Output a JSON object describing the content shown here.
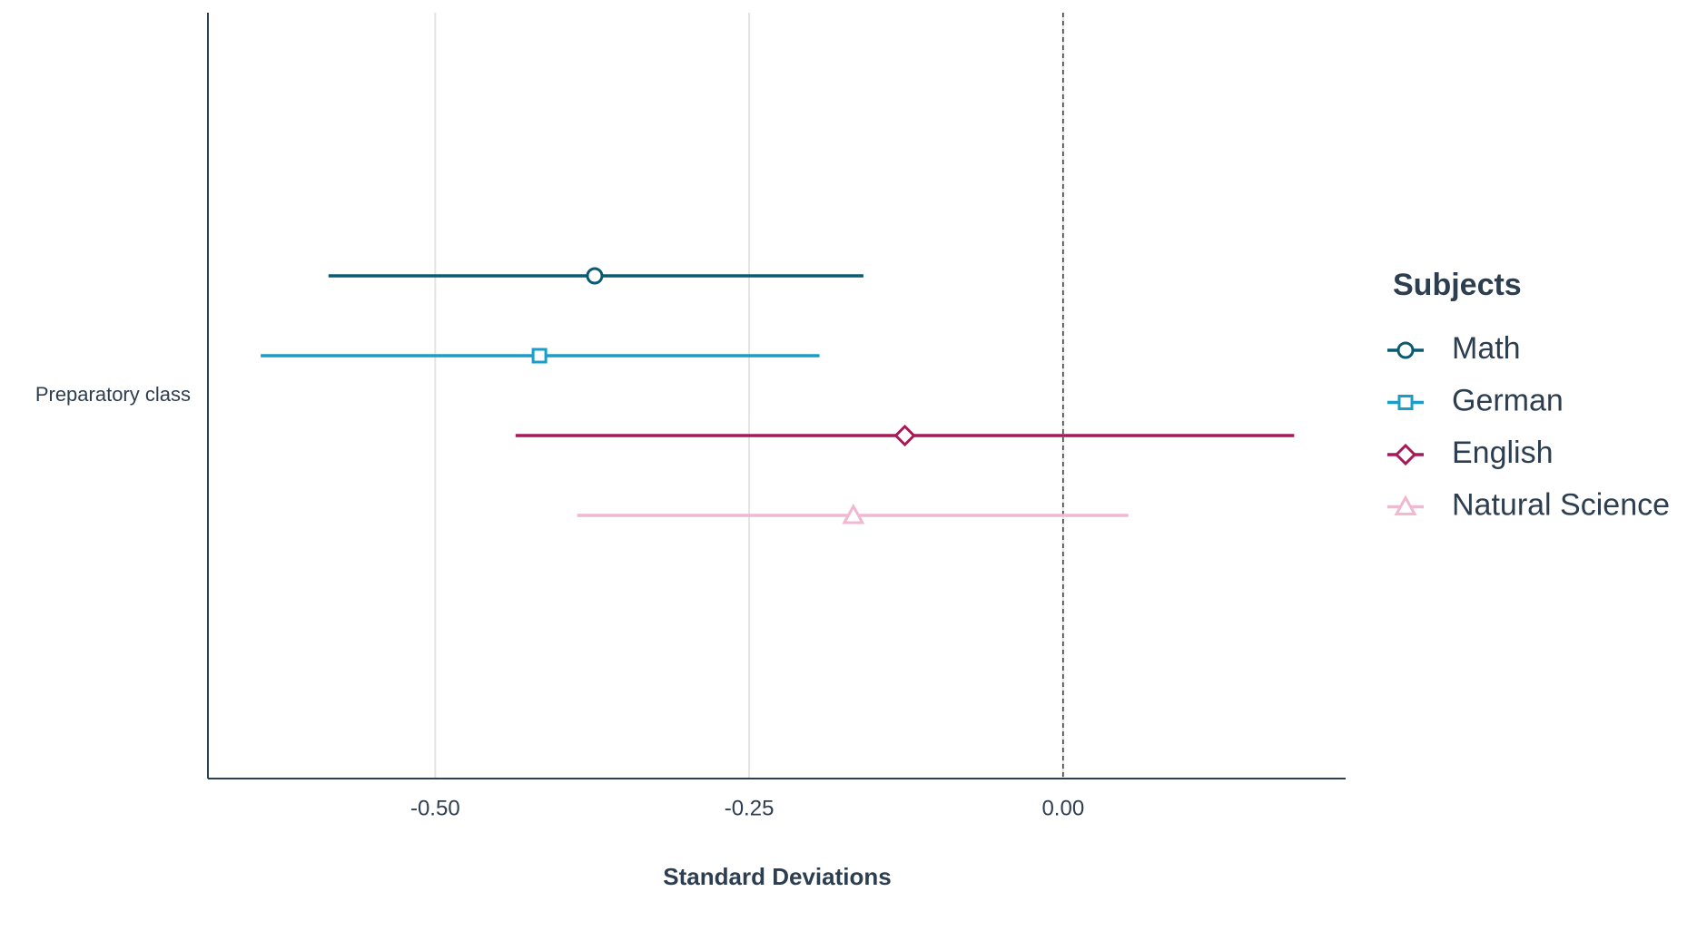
{
  "chart_data": {
    "type": "errorbar",
    "x_label": "Standard Deviations",
    "categories": [
      "Preparatory class"
    ],
    "legend_title": "Subjects",
    "legend": "right",
    "grid": true,
    "reference_line": 0,
    "xlim": [
      -0.681,
      0.225
    ],
    "xticks": [
      {
        "value": -0.5,
        "label": "-0.50"
      },
      {
        "value": -0.25,
        "label": "-0.25"
      },
      {
        "value": 0,
        "label": "0.00"
      }
    ],
    "series": [
      {
        "name": "Math",
        "color": "#0b5a73",
        "marker": "circle",
        "values": [
          -0.373
        ],
        "lower": [
          -0.585
        ],
        "upper": [
          -0.159
        ]
      },
      {
        "name": "German",
        "color": "#1a9dc9",
        "marker": "square",
        "values": [
          -0.417
        ],
        "lower": [
          -0.639
        ],
        "upper": [
          -0.194
        ]
      },
      {
        "name": "English",
        "color": "#a8195a",
        "marker": "diamond",
        "values": [
          -0.126
        ],
        "lower": [
          -0.436
        ],
        "upper": [
          0.184
        ]
      },
      {
        "name": "Natural Science",
        "color": "#f2b8d1",
        "marker": "triangle",
        "values": [
          -0.167
        ],
        "lower": [
          -0.387
        ],
        "upper": [
          0.052
        ]
      }
    ]
  }
}
